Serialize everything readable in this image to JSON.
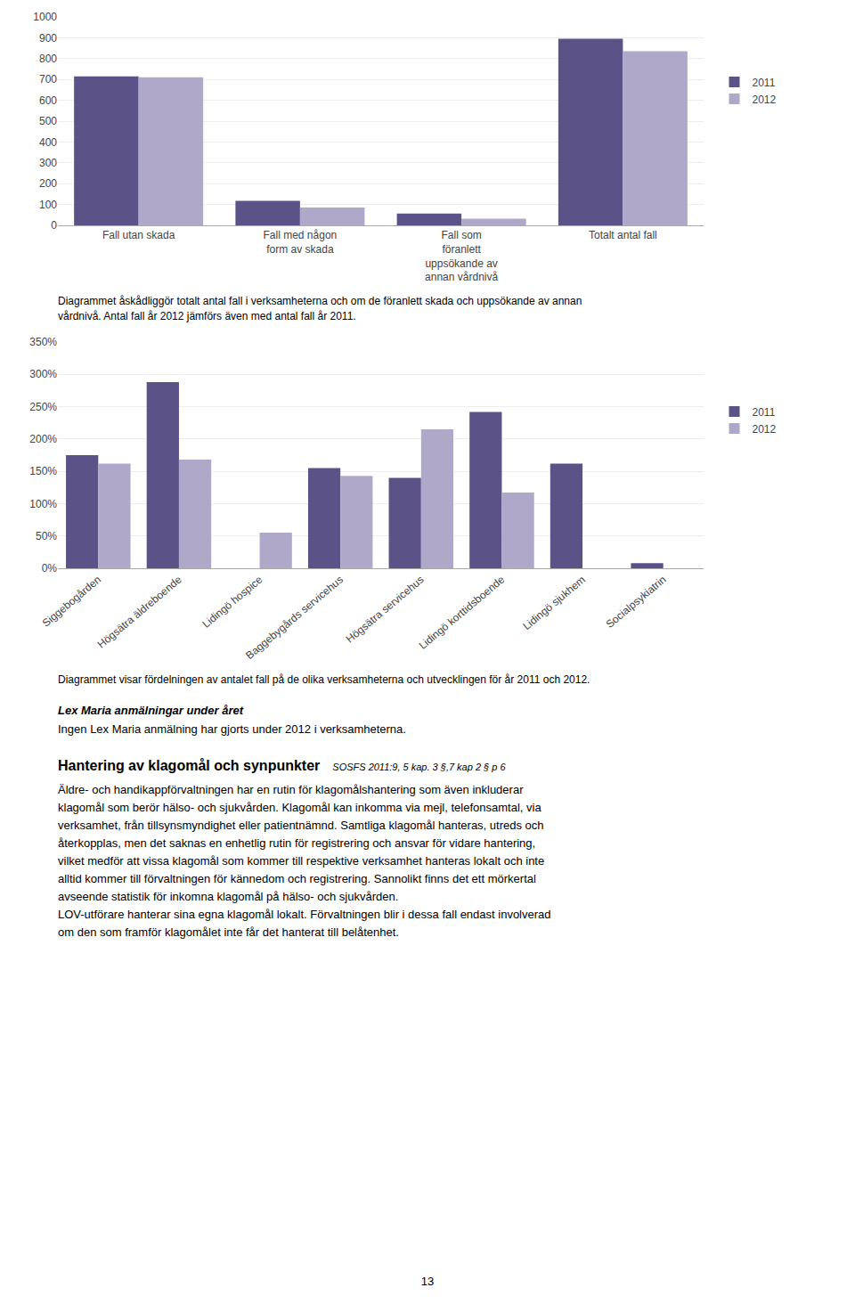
{
  "chart_data": [
    {
      "type": "bar",
      "categories": [
        "Fall utan skada",
        "Fall med någon\nform av skada",
        "Fall som\nföranlett\nuppsökande av\nannan vårdnivå",
        "Totalt antal fall"
      ],
      "series": [
        {
          "name": "2011",
          "color": "#5b5287",
          "values": [
            715,
            118,
            57,
            895
          ]
        },
        {
          "name": "2012",
          "color": "#b0a8c8",
          "values": [
            710,
            85,
            32,
            835
          ]
        }
      ],
      "ylim": [
        0,
        1000
      ],
      "yticks": [
        0,
        100,
        200,
        300,
        400,
        500,
        600,
        700,
        800,
        900,
        1000
      ],
      "grid": true,
      "legend": "right"
    },
    {
      "type": "bar",
      "categories": [
        "Siggebogården",
        "Högsätra äldreboende",
        "Lidingö hospice",
        "Baggebygårds servicehus",
        "Högsätra servicehus",
        "Lidingö korttidsboende",
        "Lidingö sjukhem",
        "Socialpsykiatrin"
      ],
      "series": [
        {
          "name": "2011",
          "color": "#5b5287",
          "values": [
            1.75,
            2.88,
            0.0,
            1.55,
            1.4,
            2.42,
            1.62,
            0.08
          ]
        },
        {
          "name": "2012",
          "color": "#b0a8c8",
          "values": [
            1.62,
            1.68,
            0.55,
            1.43,
            2.15,
            1.17,
            0.0,
            0.0
          ]
        }
      ],
      "ylim": [
        0,
        3.5
      ],
      "yticks": [
        {
          "value": 0.0,
          "label": "0%"
        },
        {
          "value": 0.5,
          "label": "50%"
        },
        {
          "value": 1.0,
          "label": "100%"
        },
        {
          "value": 1.5,
          "label": "150%"
        },
        {
          "value": 2.0,
          "label": "200%"
        },
        {
          "value": 2.5,
          "label": "250%"
        },
        {
          "value": 3.0,
          "label": "300%"
        },
        {
          "value": 3.5,
          "label": "350%"
        }
      ],
      "grid": true,
      "legend": "right"
    }
  ],
  "annotations": [
    "Diagrammet åskådliggör totalt antal fall i verksamheterna och om de föranlett skada och uppsökande av annan\nvårdnivå. Antal fall år 2012 jämförs även med antal fall år 2011.",
    "Diagrammet visar fördelningen av antalet fall på de olika verksamheterna och utvecklingen för år 2011 och 2012.",
    "Lex Maria anmälningar under året",
    "Ingen Lex Maria anmälning har gjorts under 2012 i verksamheterna.",
    "Hantering av klagomål och synpunkter",
    "SOSFS 2011:9, 5 kap. 3 §,7 kap 2 § p 6",
    "Äldre- och handikappförvaltningen har en rutin för klagomålshantering som även inkluderar",
    "klagomål som berör hälso- och sjukvården. Klagomål kan inkomma via mejl, telefonsamtal, via",
    "verksamhet, från tillsynsmyndighet eller patientnämnd. Samtliga klagomål hanteras, utreds och",
    "återkopplas, men det saknas en enhetlig rutin för registrering och ansvar för vidare hantering,",
    "vilket medför att vissa klagomål som kommer till respektive verksamhet hanteras lokalt och inte",
    "alltid kommer till förvaltningen för kännedom och registrering. Sannolikt finns det ett mörkertal",
    "avseende statistik för inkomna klagomål på hälso- och sjukvården.",
    "LOV-utförare hanterar sina egna klagomål lokalt. Förvaltningen blir i dessa fall endast involverad",
    "om den som framför klagomålet inte får det hanterat till belåtenhet.",
    "13"
  ]
}
